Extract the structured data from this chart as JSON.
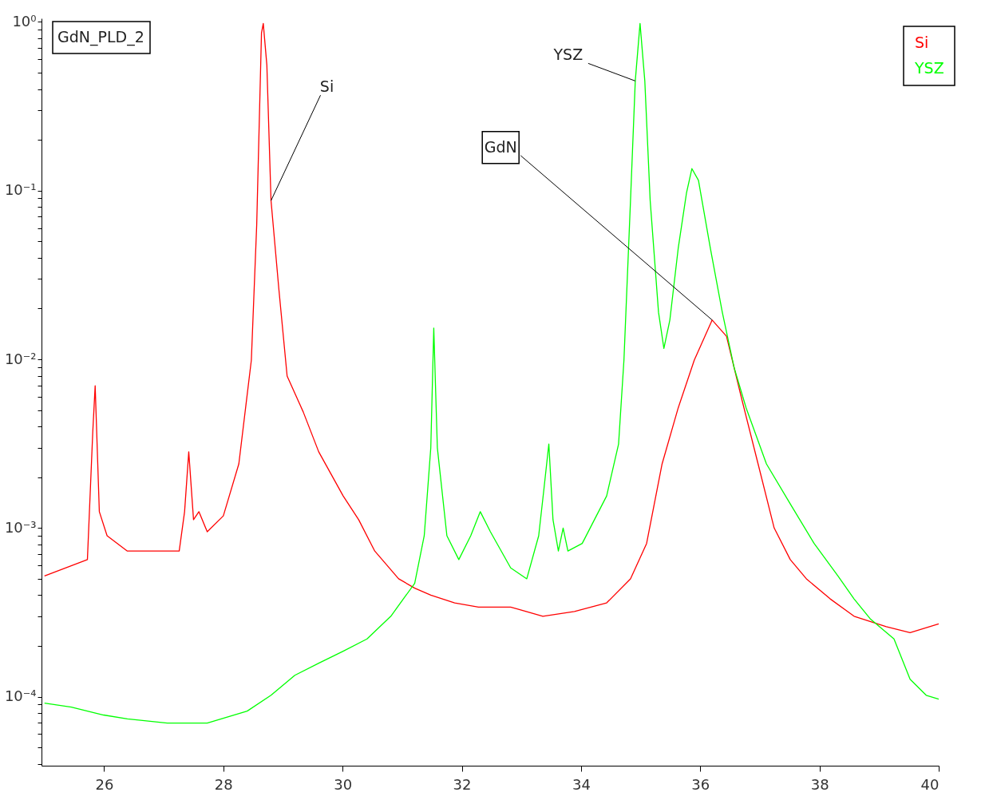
{
  "chart_data": {
    "type": "line",
    "xlim": [
      24.95,
      40
    ],
    "xticks": [
      26,
      28,
      30,
      32,
      34,
      36,
      38,
      40
    ],
    "ylim": [
      3.9e-05,
      1.05
    ],
    "log": true,
    "grid": false,
    "legend": "top right",
    "marker": "none",
    "line_style": "solid",
    "yticks": [
      {
        "value": 0.0001,
        "label": "10⁻⁴"
      },
      {
        "value": 0.001,
        "label": "10⁻³"
      },
      {
        "value": 0.01,
        "label": "10⁻²"
      },
      {
        "value": 0.1,
        "label": "10⁻¹"
      },
      {
        "value": 1,
        "label": "10⁰"
      },
      {
        "value": 4e-05,
        "label": null
      },
      {
        "value": 5e-05,
        "label": null
      },
      {
        "value": 6e-05,
        "label": null
      },
      {
        "value": 7e-05,
        "label": null
      },
      {
        "value": 8e-05,
        "label": null
      },
      {
        "value": 9e-05,
        "label": null
      },
      {
        "value": 0.0002,
        "label": null
      },
      {
        "value": 0.0003,
        "label": null
      },
      {
        "value": 0.0004,
        "label": null
      },
      {
        "value": 0.0005,
        "label": null
      },
      {
        "value": 0.0006,
        "label": null
      },
      {
        "value": 0.0007,
        "label": null
      },
      {
        "value": 0.0008,
        "label": null
      },
      {
        "value": 0.0009,
        "label": null
      },
      {
        "value": 0.002,
        "label": null
      },
      {
        "value": 0.003,
        "label": null
      },
      {
        "value": 0.004,
        "label": null
      },
      {
        "value": 0.005,
        "label": null
      },
      {
        "value": 0.006,
        "label": null
      },
      {
        "value": 0.007,
        "label": null
      },
      {
        "value": 0.008,
        "label": null
      },
      {
        "value": 0.009,
        "label": null
      },
      {
        "value": 0.02,
        "label": null
      },
      {
        "value": 0.03,
        "label": null
      },
      {
        "value": 0.04,
        "label": null
      },
      {
        "value": 0.05,
        "label": null
      },
      {
        "value": 0.06,
        "label": null
      },
      {
        "value": 0.07,
        "label": null
      },
      {
        "value": 0.08,
        "label": null
      },
      {
        "value": 0.09,
        "label": null
      },
      {
        "value": 0.2,
        "label": null
      },
      {
        "value": 0.3,
        "label": null
      },
      {
        "value": 0.4,
        "label": null
      },
      {
        "value": 0.5,
        "label": null
      },
      {
        "value": 0.6,
        "label": null
      },
      {
        "value": 0.7,
        "label": null
      },
      {
        "value": 0.8,
        "label": null
      },
      {
        "value": 0.9,
        "label": null
      }
    ],
    "annotations": [
      "GdN_PLD_2",
      {
        "text": "Si",
        "x": 28.8,
        "y": 0.0873
      },
      {
        "text": "YSZ",
        "x": 34.91,
        "y": 0.447
      },
      {
        "text": "GdN",
        "x": 36.2,
        "y": 0.0171
      }
    ],
    "series": [
      {
        "name": "Si",
        "color": "#ff0000",
        "x": [
          25.0,
          25.72,
          25.81,
          25.85,
          25.92,
          26.05,
          26.39,
          27.06,
          27.26,
          27.35,
          27.42,
          27.5,
          27.59,
          27.73,
          28.0,
          28.26,
          28.47,
          28.56,
          28.64,
          28.67,
          28.73,
          28.8,
          28.93,
          29.07,
          29.34,
          29.6,
          30.01,
          30.27,
          30.54,
          30.94,
          31.21,
          31.48,
          31.88,
          32.28,
          32.82,
          33.36,
          33.89,
          34.43,
          34.83,
          35.1,
          35.36,
          35.63,
          35.9,
          36.2,
          36.44,
          36.7,
          36.97,
          37.24,
          37.51,
          37.78,
          38.18,
          38.58,
          39.12,
          39.52,
          40.0
        ],
        "values": [
          0.00052,
          0.00065,
          0.00372,
          0.00698,
          0.00125,
          0.0009,
          0.00073,
          0.00073,
          0.00073,
          0.00125,
          0.00283,
          0.00112,
          0.00125,
          0.00095,
          0.00118,
          0.0024,
          0.0099,
          0.063,
          0.859,
          0.98,
          0.556,
          0.0873,
          0.0264,
          0.00796,
          0.00488,
          0.00283,
          0.00155,
          0.00112,
          0.00073,
          0.0005,
          0.00044,
          0.0004,
          0.00036,
          0.00034,
          0.00034,
          0.0003,
          0.00032,
          0.00036,
          0.0005,
          0.00081,
          0.0024,
          0.00515,
          0.0099,
          0.0171,
          0.0137,
          0.00574,
          0.0024,
          0.001,
          0.00065,
          0.0005,
          0.00038,
          0.0003,
          0.00026,
          0.00024,
          0.00027
        ]
      },
      {
        "name": "YSZ",
        "color": "#00ff00",
        "x": [
          25.0,
          25.45,
          25.99,
          26.39,
          27.06,
          27.73,
          28.4,
          28.8,
          29.2,
          29.6,
          30.01,
          30.41,
          30.81,
          31.21,
          31.37,
          31.48,
          31.53,
          31.59,
          31.75,
          31.95,
          32.15,
          32.31,
          32.48,
          32.82,
          33.09,
          33.29,
          33.38,
          33.46,
          33.53,
          33.62,
          33.7,
          33.78,
          34.02,
          34.43,
          34.63,
          34.72,
          34.83,
          34.91,
          34.99,
          35.07,
          35.16,
          35.3,
          35.39,
          35.49,
          35.63,
          35.77,
          35.86,
          35.97,
          36.17,
          36.37,
          36.57,
          36.77,
          37.11,
          37.51,
          37.91,
          38.31,
          38.58,
          38.85,
          39.25,
          39.52,
          39.79,
          40.0
        ],
        "values": [
          9.16e-05,
          8.68e-05,
          7.79e-05,
          7.38e-05,
          6.98e-05,
          6.98e-05,
          8.22e-05,
          0.000102,
          0.000134,
          0.000158,
          0.000186,
          0.00022,
          0.0003,
          0.00047,
          0.0009,
          0.00299,
          0.0153,
          0.00299,
          0.0009,
          0.00065,
          0.0009,
          0.00125,
          0.00095,
          0.00058,
          0.0005,
          0.0009,
          0.00173,
          0.00315,
          0.00112,
          0.00073,
          0.001,
          0.00073,
          0.00081,
          0.00155,
          0.00315,
          0.0099,
          0.0873,
          0.447,
          0.98,
          0.447,
          0.0873,
          0.019,
          0.0116,
          0.0171,
          0.0454,
          0.0973,
          0.135,
          0.115,
          0.0454,
          0.019,
          0.00887,
          0.00515,
          0.0024,
          0.00139,
          0.00081,
          0.00052,
          0.00038,
          0.00029,
          0.00022,
          0.000127,
          0.000102,
          9.68e-05
        ]
      }
    ]
  }
}
